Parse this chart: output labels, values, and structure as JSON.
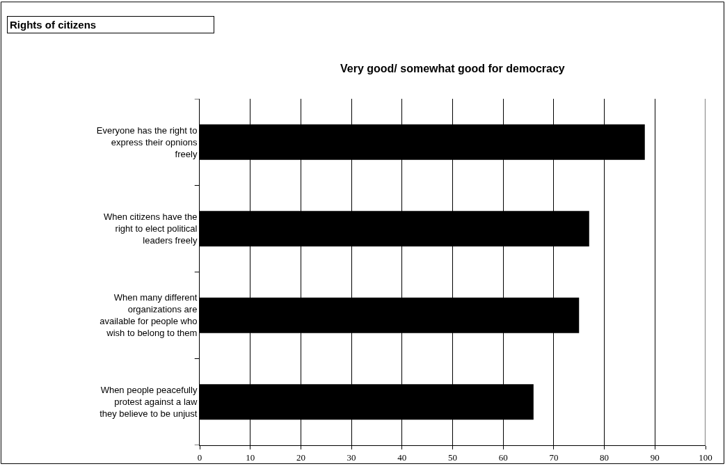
{
  "chart_data": {
    "type": "bar",
    "orientation": "horizontal",
    "title": "Rights of citizens",
    "subtitle": "Very good/ somewhat good for democracy",
    "categories": [
      "Everyone has the right to express their opnions freely",
      "When citizens have the right to elect political leaders freely",
      "When many different organizations are available for people who wish to belong to them",
      "When people peacefully protest against a law they believe to be unjust"
    ],
    "values": [
      88,
      77,
      75,
      66
    ],
    "color": "#000000",
    "xlim": [
      0,
      100
    ],
    "xticks": [
      0,
      10,
      20,
      30,
      40,
      50,
      60,
      70,
      80,
      90,
      100
    ],
    "grid": "x"
  }
}
